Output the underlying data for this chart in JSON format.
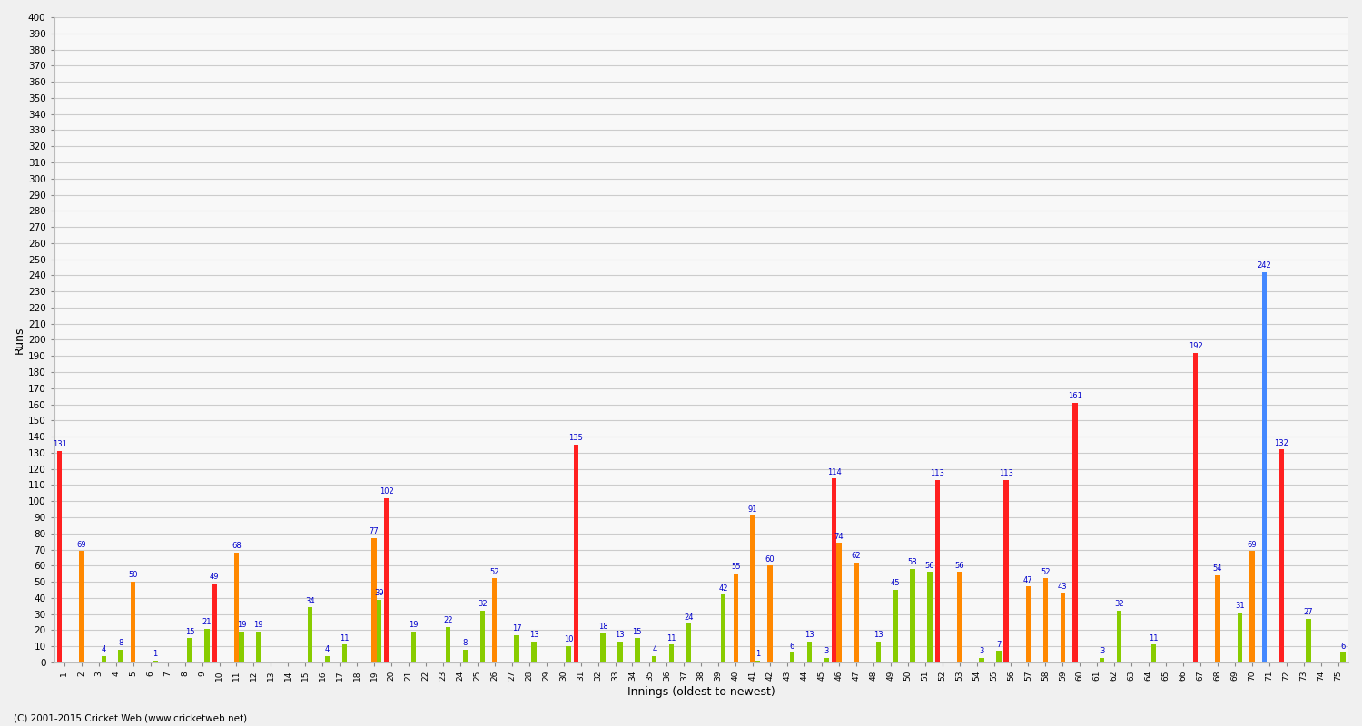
{
  "show_title": false,
  "xlabel": "Innings (oldest to newest)",
  "ylabel": "Runs",
  "plot_bg_color": "#f8f8f8",
  "fig_bg_color": "#f0f0f0",
  "grid_color": "#cccccc",
  "innings": [
    1,
    2,
    3,
    4,
    5,
    6,
    7,
    8,
    9,
    10,
    11,
    12,
    13,
    14,
    15,
    16,
    17,
    18,
    19,
    20,
    21,
    22,
    23,
    24,
    25,
    26,
    27,
    28,
    29,
    30,
    31,
    32,
    33,
    34,
    35,
    36,
    37,
    38,
    39,
    40,
    41,
    42,
    43,
    44,
    45,
    46,
    47,
    48,
    49,
    50,
    51,
    52,
    53,
    54,
    55,
    56,
    57,
    58,
    59,
    60,
    61,
    62,
    63,
    64,
    65,
    66,
    67,
    68,
    69,
    70,
    71,
    72,
    73,
    74,
    75
  ],
  "red_bars": [
    131,
    0,
    0,
    0,
    0,
    0,
    0,
    0,
    0,
    49,
    0,
    0,
    0,
    0,
    0,
    0,
    0,
    0,
    0,
    102,
    0,
    0,
    0,
    0,
    0,
    0,
    0,
    0,
    0,
    0,
    135,
    0,
    0,
    0,
    0,
    0,
    0,
    0,
    0,
    0,
    0,
    0,
    0,
    0,
    0,
    114,
    0,
    0,
    0,
    0,
    0,
    113,
    0,
    0,
    0,
    113,
    0,
    0,
    0,
    161,
    0,
    0,
    0,
    0,
    0,
    0,
    192,
    0,
    0,
    0,
    0,
    132,
    0,
    0,
    0
  ],
  "orange_bars": [
    0,
    69,
    0,
    0,
    50,
    0,
    0,
    0,
    0,
    0,
    68,
    0,
    0,
    0,
    0,
    0,
    0,
    0,
    77,
    0,
    0,
    0,
    0,
    0,
    0,
    52,
    0,
    0,
    0,
    0,
    0,
    0,
    0,
    0,
    0,
    0,
    0,
    0,
    0,
    55,
    91,
    60,
    0,
    0,
    0,
    74,
    62,
    0,
    0,
    0,
    0,
    0,
    56,
    0,
    0,
    0,
    47,
    52,
    43,
    0,
    0,
    0,
    0,
    0,
    0,
    0,
    0,
    54,
    0,
    69,
    0,
    0,
    0,
    0,
    0
  ],
  "green_bars": [
    0,
    0,
    4,
    8,
    0,
    1,
    0,
    15,
    21,
    0,
    19,
    19,
    0,
    0,
    34,
    4,
    11,
    0,
    39,
    0,
    19,
    0,
    22,
    8,
    32,
    0,
    17,
    13,
    0,
    10,
    0,
    18,
    13,
    15,
    4,
    11,
    24,
    0,
    42,
    0,
    1,
    0,
    6,
    13,
    3,
    0,
    0,
    13,
    45,
    58,
    56,
    0,
    0,
    3,
    7,
    0,
    0,
    0,
    0,
    0,
    3,
    32,
    0,
    11,
    0,
    0,
    0,
    0,
    31,
    0,
    0,
    0,
    27,
    0,
    6
  ],
  "blue_bars": [
    0,
    0,
    0,
    0,
    0,
    0,
    0,
    0,
    0,
    0,
    0,
    0,
    0,
    0,
    0,
    0,
    0,
    0,
    0,
    0,
    0,
    0,
    0,
    0,
    0,
    0,
    0,
    0,
    0,
    0,
    0,
    0,
    0,
    0,
    0,
    0,
    0,
    0,
    0,
    0,
    0,
    0,
    0,
    0,
    0,
    0,
    0,
    0,
    0,
    0,
    0,
    0,
    0,
    0,
    0,
    0,
    0,
    0,
    0,
    0,
    0,
    0,
    0,
    0,
    0,
    0,
    0,
    0,
    0,
    0,
    242,
    0,
    0,
    0,
    0
  ],
  "red_color": "#ff2020",
  "orange_color": "#ff8800",
  "green_color": "#88cc00",
  "blue_color": "#4488ff",
  "label_color": "#0000cc",
  "ylim": [
    0,
    400
  ],
  "yticks": [
    0,
    10,
    20,
    30,
    40,
    50,
    60,
    70,
    80,
    90,
    100,
    110,
    120,
    130,
    140,
    150,
    160,
    170,
    180,
    190,
    200,
    210,
    220,
    230,
    240,
    250,
    260,
    270,
    280,
    290,
    300,
    310,
    320,
    330,
    340,
    350,
    360,
    370,
    380,
    390,
    400
  ],
  "footer": "(C) 2001-2015 Cricket Web (www.cricketweb.net)"
}
